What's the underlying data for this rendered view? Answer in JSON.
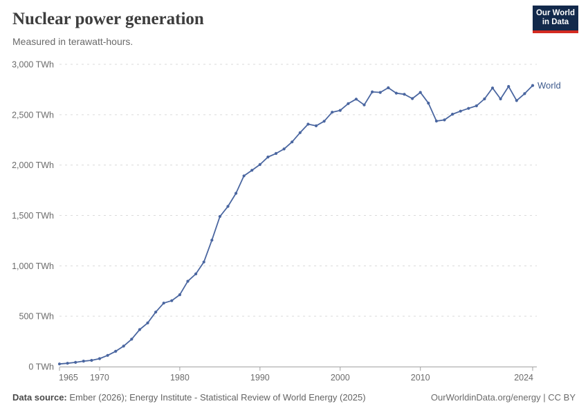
{
  "header": {
    "title": "Nuclear power generation",
    "subtitle": "Measured in terawatt-hours."
  },
  "logo": {
    "line1": "Our World",
    "line2": "in Data",
    "bg_color": "#12294b",
    "accent_color": "#d42b21"
  },
  "series_label": "World",
  "footer": {
    "source_label": "Data source:",
    "source_text": " Ember (2026); Energy Institute - Statistical Review of World Energy (2025)",
    "url": "OurWorldinData.org/energy",
    "separator": " | ",
    "license": "CC BY"
  },
  "colors": {
    "line": "#4a66a0",
    "series_label": "#3d5a8c",
    "grid": "#dadada",
    "axis": "#a1a1a1",
    "tick_label": "#6b6b6b"
  },
  "chart_data": {
    "type": "line",
    "title": "Nuclear power generation",
    "unit": "TWh",
    "xlabel": "",
    "ylabel": "",
    "xlim": [
      1965,
      2024
    ],
    "ylim": [
      0,
      3000
    ],
    "grid": "horizontal-dashed",
    "legend": "end-of-line-label",
    "x_ticks": [
      1965,
      1970,
      1980,
      1990,
      2000,
      2010,
      2024
    ],
    "y_ticks": [
      {
        "value": 0,
        "label": "0 TWh"
      },
      {
        "value": 500,
        "label": "500 TWh"
      },
      {
        "value": 1000,
        "label": "1,000 TWh"
      },
      {
        "value": 1500,
        "label": "1,500 TWh"
      },
      {
        "value": 2000,
        "label": "2,000 TWh"
      },
      {
        "value": 2500,
        "label": "2,500 TWh"
      },
      {
        "value": 3000,
        "label": "3,000 TWh"
      }
    ],
    "x": [
      1965,
      1966,
      1967,
      1968,
      1969,
      1970,
      1971,
      1972,
      1973,
      1974,
      1975,
      1976,
      1977,
      1978,
      1979,
      1980,
      1981,
      1982,
      1983,
      1984,
      1985,
      1986,
      1987,
      1988,
      1989,
      1990,
      1991,
      1992,
      1993,
      1994,
      1995,
      1996,
      1997,
      1998,
      1999,
      2000,
      2001,
      2002,
      2003,
      2004,
      2005,
      2006,
      2007,
      2008,
      2009,
      2010,
      2011,
      2012,
      2013,
      2014,
      2015,
      2016,
      2017,
      2018,
      2019,
      2020,
      2021,
      2022,
      2023,
      2024
    ],
    "series": [
      {
        "name": "World",
        "values": [
          26,
          33,
          42,
          54,
          62,
          79,
          111,
          152,
          203,
          272,
          367,
          433,
          541,
          630,
          654,
          713,
          847,
          920,
          1038,
          1255,
          1490,
          1590,
          1720,
          1893,
          1948,
          2005,
          2080,
          2115,
          2160,
          2230,
          2322,
          2406,
          2390,
          2435,
          2525,
          2543,
          2610,
          2655,
          2597,
          2726,
          2721,
          2767,
          2714,
          2703,
          2660,
          2721,
          2615,
          2437,
          2448,
          2505,
          2535,
          2563,
          2588,
          2657,
          2765,
          2657,
          2780,
          2640,
          2709,
          2790
        ]
      }
    ]
  }
}
